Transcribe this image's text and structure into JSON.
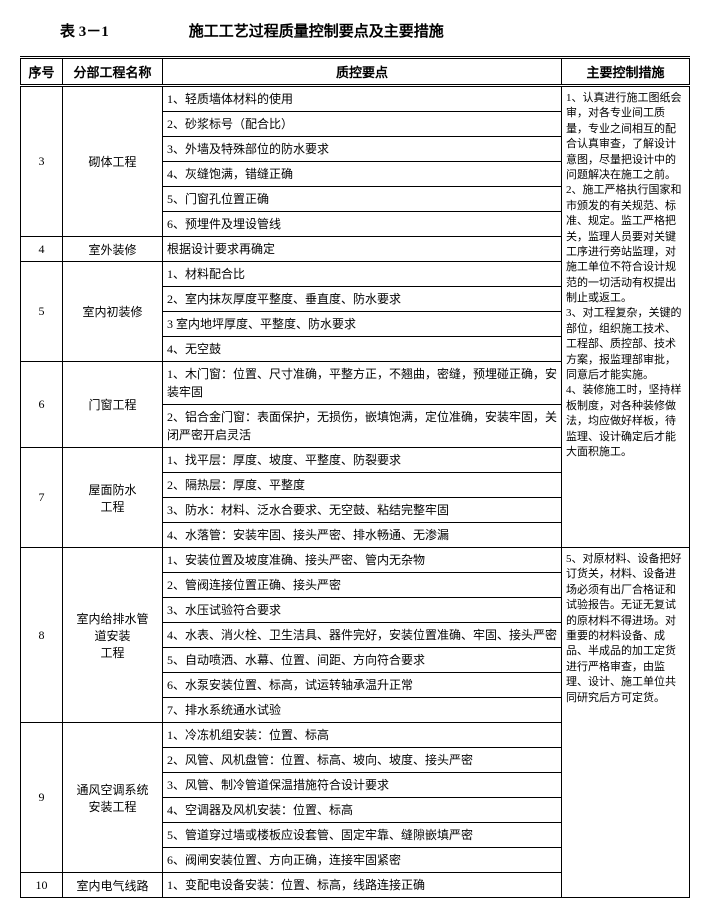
{
  "tableNumber": "表 3－1",
  "title": "施工工艺过程质量控制要点及主要措施",
  "headers": {
    "seq": "序号",
    "name": "分部工程名称",
    "point": "质控要点",
    "measure": "主要控制措施"
  },
  "measures": {
    "m1": "1、认真进行施工图纸会审，对各专业间工质量，专业之间相互的配合认真审查，了解设计意图，尽量把设计中的问题解决在施工之前。\n2、施工严格执行国家和市颁发的有关规范、标准、规定。监工严格把关，监理人员要对关键工序进行旁站监理，对施工单位不符合设计规范的一切活动有权提出制止或返工。\n3、对工程复杂，关键的部位，组织施工技术、工程部、质控部、技术方案，报监理部审批，同意后才能实施。\n4、装修施工时，坚持样板制度，对各种装修做法，均应做好样板，待监理、设计确定后才能大面积施工。",
    "m2": "5、对原材料、设备把好订货关，材料、设备进场必须有出厂合格证和试验报告。无证无复试的原材料不得进场。对重要的材料设备、成品、半成品的加工定货进行严格审查，由监理、设计、施工单位共同研究后方可定货。"
  },
  "rows": [
    {
      "seq": "3",
      "name": "砌体工程",
      "points": [
        "1、轻质墙体材料的使用",
        "2、砂浆标号（配合比）",
        "3、外墙及特殊部位的防水要求",
        "4、灰缝饱满，错缝正确",
        "5、门窗孔位置正确",
        "6、预埋件及埋设管线"
      ]
    },
    {
      "seq": "4",
      "name": "室外装修",
      "points": [
        "根据设计要求再确定"
      ]
    },
    {
      "seq": "5",
      "name": "室内初装修",
      "points": [
        "1、材料配合比",
        "2、室内抹灰厚度平整度、垂直度、防水要求",
        "3 室内地坪厚度、平整度、防水要求",
        "4、无空鼓"
      ]
    },
    {
      "seq": "6",
      "name": "门窗工程",
      "points": [
        "1、木门窗：位置、尺寸准确，平整方正，不翘曲，密缝，预埋碰正确，安装牢固",
        "2、铝合金门窗：表面保护，无损伤，嵌填饱满，定位准确，安装牢固，关闭严密开启灵活"
      ]
    },
    {
      "seq": "7",
      "name": "屋面防水\n工程",
      "points": [
        "1、找平层：厚度、坡度、平整度、防裂要求",
        "2、隔热层：厚度、平整度",
        "3、防水：材料、泛水合要求、无空鼓、粘结完整牢固",
        "4、水落管：安装牢固、接头严密、排水畅通、无渗漏"
      ]
    },
    {
      "seq": "8",
      "name": "室内给排水管\n道安装\n工程",
      "points": [
        "1、安装位置及坡度准确、接头严密、管内无杂物",
        "2、管阀连接位置正确、接头严密",
        "3、水压试验符合要求",
        "4、水表、消火栓、卫生洁具、器件完好，安装位置准确、牢固、接头严密",
        "5、自动喷洒、水幕、位置、间距、方向符合要求",
        "6、水泵安装位置、标高，试运转轴承温升正常",
        "7、排水系统通水试验"
      ]
    },
    {
      "seq": "9",
      "name": "通风空调系统\n安装工程",
      "points": [
        "1、冷冻机组安装：位置、标高",
        "2、风管、风机盘管：位置、标高、坡向、坡度、接头严密",
        "3、风管、制冷管道保温措施符合设计要求",
        "4、空调器及风机安装：位置、标高",
        "5、管道穿过墙或楼板应设套管、固定牢靠、缝隙嵌填严密",
        "6、阀闸安装位置、方向正确，连接牢固紧密"
      ]
    },
    {
      "seq": "10",
      "name": "室内电气线路",
      "points": [
        "1、变配电设备安装：位置、标高，线路连接正确"
      ]
    }
  ]
}
